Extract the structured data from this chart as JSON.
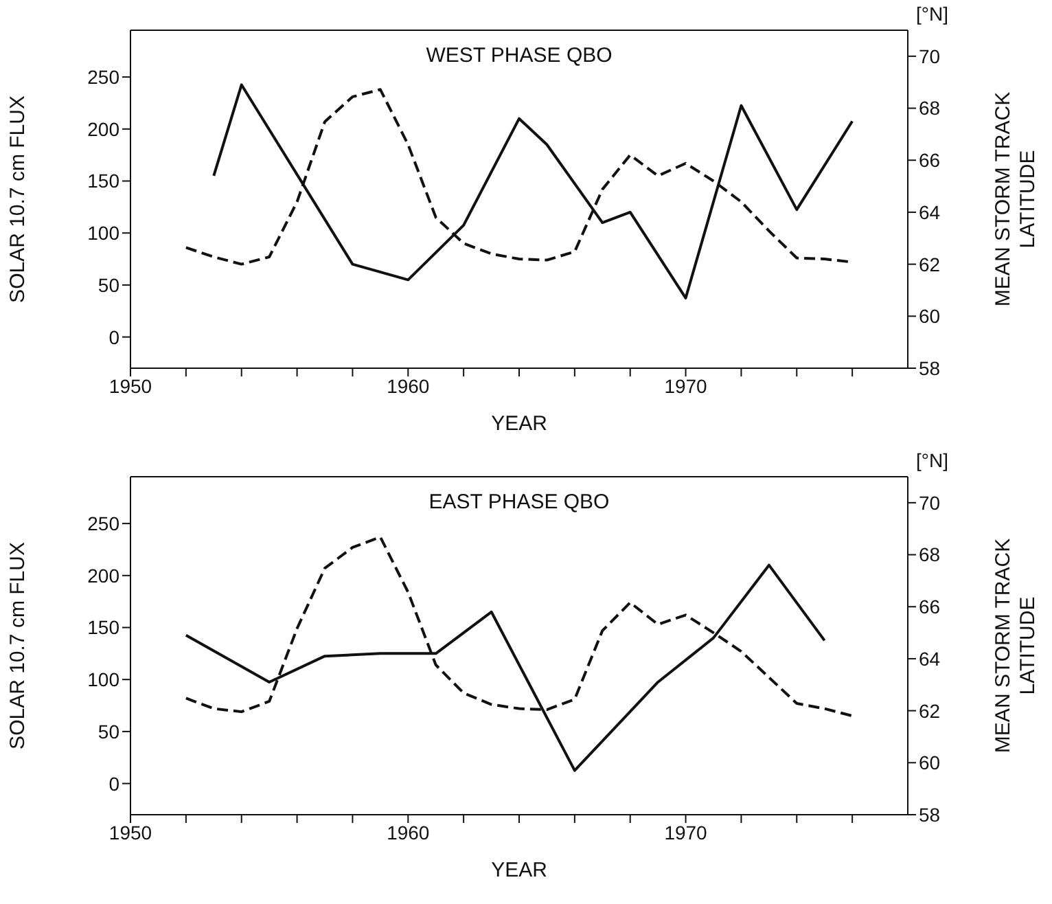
{
  "chart_data": [
    {
      "type": "line",
      "title": "WEST PHASE QBO",
      "xlabel": "YEAR",
      "ylabel": "SOLAR 10.7 cm FLUX",
      "y2label": "MEAN STORM TRACK\nLATITUDE",
      "annotations": [
        "[°N]"
      ],
      "xlim": [
        1950,
        1978
      ],
      "xticks": [
        1950,
        {
          "value": 1952,
          "label": null
        },
        {
          "value": 1954,
          "label": null
        },
        {
          "value": 1956,
          "label": null
        },
        {
          "value": 1958,
          "label": null
        },
        1960,
        {
          "value": 1962,
          "label": null
        },
        {
          "value": 1964,
          "label": null
        },
        {
          "value": 1966,
          "label": null
        },
        {
          "value": 1968,
          "label": null
        },
        1970,
        {
          "value": 1972,
          "label": null
        },
        {
          "value": 1974,
          "label": null
        },
        {
          "value": 1976,
          "label": null
        }
      ],
      "ylim": [
        -30,
        295
      ],
      "yticks": [
        0,
        50,
        100,
        150,
        200,
        250
      ],
      "y2lim": [
        58,
        71
      ],
      "y2ticks": [
        58,
        60,
        62,
        64,
        66,
        68,
        70
      ],
      "marker": "none",
      "series": [
        {
          "type": "line",
          "color": "#111111",
          "line_style": "dashed",
          "x": [
            1952,
            1953,
            1954,
            1955,
            1956,
            1957,
            1958,
            1959,
            1960,
            1961,
            1962,
            1963,
            1964,
            1965,
            1966,
            1967,
            1968,
            1969,
            1970,
            1971,
            1972,
            1973,
            1974,
            1975,
            1976
          ],
          "values": [
            86,
            77,
            70,
            77,
            130,
            207,
            231,
            238,
            185,
            115,
            90,
            80,
            75,
            74,
            82,
            142,
            175,
            155,
            167,
            150,
            130,
            102,
            76,
            75,
            72
          ]
        },
        {
          "type": "line",
          "color": "#111111",
          "line_style": "solid",
          "axis": "y2",
          "x": [
            1953,
            1954,
            1958,
            1960,
            1962,
            1964,
            1965,
            1967,
            1968,
            1970,
            1972,
            1974,
            1976
          ],
          "values": [
            65.4,
            68.9,
            62,
            61.4,
            63.5,
            67.6,
            66.6,
            63.6,
            64,
            60.7,
            68.1,
            64.1,
            67.5
          ]
        }
      ]
    },
    {
      "type": "line",
      "title": "EAST PHASE QBO",
      "xlabel": "YEAR",
      "ylabel": "SOLAR 10.7 cm FLUX",
      "y2label": "MEAN STORM TRACK\nLATITUDE",
      "annotations": [
        "[°N]"
      ],
      "xlim": [
        1950,
        1978
      ],
      "xticks": [
        1950,
        {
          "value": 1952,
          "label": null
        },
        {
          "value": 1954,
          "label": null
        },
        {
          "value": 1956,
          "label": null
        },
        {
          "value": 1958,
          "label": null
        },
        1960,
        {
          "value": 1962,
          "label": null
        },
        {
          "value": 1964,
          "label": null
        },
        {
          "value": 1966,
          "label": null
        },
        {
          "value": 1968,
          "label": null
        },
        1970,
        {
          "value": 1972,
          "label": null
        },
        {
          "value": 1974,
          "label": null
        },
        {
          "value": 1976,
          "label": null
        }
      ],
      "ylim": [
        -30,
        295
      ],
      "yticks": [
        0,
        50,
        100,
        150,
        200,
        250
      ],
      "y2lim": [
        58,
        71
      ],
      "y2ticks": [
        58,
        60,
        62,
        64,
        66,
        68,
        70
      ],
      "marker": "none",
      "series": [
        {
          "type": "line",
          "color": "#111111",
          "line_style": "dashed",
          "x": [
            1952,
            1953,
            1954,
            1955,
            1956,
            1957,
            1958,
            1959,
            1960,
            1961,
            1962,
            1963,
            1964,
            1965,
            1966,
            1967,
            1968,
            1969,
            1970,
            1971,
            1972,
            1973,
            1974,
            1975,
            1976
          ],
          "values": [
            82,
            72,
            69,
            79,
            149,
            207,
            227,
            237,
            184,
            114,
            87,
            76,
            72,
            71,
            81,
            147,
            174,
            153,
            162,
            145,
            127,
            102,
            77,
            72,
            65
          ]
        },
        {
          "type": "line",
          "color": "#111111",
          "line_style": "solid",
          "axis": "y2",
          "x": [
            1952,
            1955,
            1957,
            1959,
            1961,
            1963,
            1966,
            1969,
            1971,
            1973,
            1975
          ],
          "values": [
            64.9,
            63.1,
            64.1,
            64.2,
            64.2,
            65.8,
            59.7,
            63.1,
            64.8,
            67.6,
            64.7
          ]
        }
      ]
    }
  ]
}
